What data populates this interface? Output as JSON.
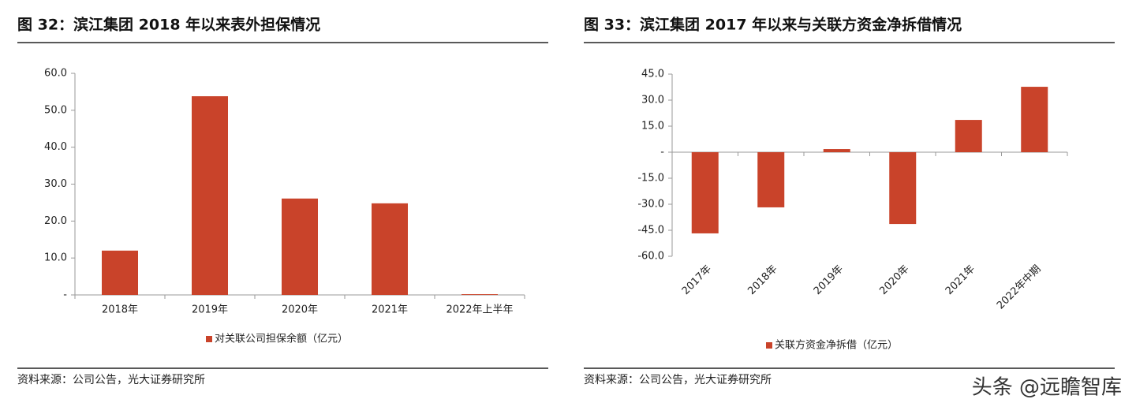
{
  "chart_data": [
    {
      "type": "bar",
      "title": "图 32：滨江集团 2018 年以来表外担保情况",
      "categories": [
        "2018年",
        "2019年",
        "2020年",
        "2021年",
        "2022年上半年"
      ],
      "series": [
        {
          "name": "对关联公司担保余额（亿元）",
          "color": "#c9432a",
          "values": [
            12.0,
            53.8,
            26.1,
            24.8,
            0.2
          ]
        }
      ],
      "ylim": [
        0,
        60
      ],
      "yticks": [
        {
          "value": 0,
          "label": "-"
        },
        {
          "value": 10,
          "label": "10.0"
        },
        {
          "value": 20,
          "label": "20.0"
        },
        {
          "value": 30,
          "label": "30.0"
        },
        {
          "value": 40,
          "label": "40.0"
        },
        {
          "value": 50,
          "label": "50.0"
        },
        {
          "value": 60,
          "label": "60.0"
        }
      ],
      "source": "资料来源：公司公告，光大证券研究所"
    },
    {
      "type": "bar",
      "title": "图 33：滨江集团 2017 年以来与关联方资金净拆借情况",
      "categories": [
        "2017年",
        "2018年",
        "2019年",
        "2020年",
        "2021年",
        "2022年中期"
      ],
      "series": [
        {
          "name": "关联方资金净拆借（亿元）",
          "color": "#c9432a",
          "values": [
            -46.8,
            -31.8,
            1.8,
            -41.4,
            18.6,
            37.7
          ]
        }
      ],
      "ylim": [
        -60,
        45
      ],
      "yticks": [
        {
          "value": -60,
          "label": "-60.0"
        },
        {
          "value": -45,
          "label": "-45.0"
        },
        {
          "value": -30,
          "label": "-30.0"
        },
        {
          "value": -15,
          "label": "-15.0"
        },
        {
          "value": 0,
          "label": "-"
        },
        {
          "value": 15,
          "label": "15.0"
        },
        {
          "value": 30,
          "label": "30.0"
        },
        {
          "value": 45,
          "label": "45.0"
        }
      ],
      "source": "资料来源：公司公告，光大证券研究所"
    }
  ],
  "watermark": "头条 @远瞻智库"
}
